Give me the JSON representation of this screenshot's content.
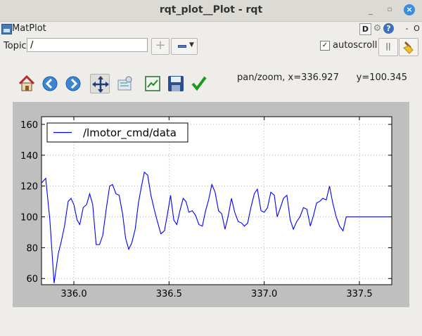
{
  "window": {
    "title": "rqt_plot__Plot - rqt"
  },
  "plugin": {
    "title": "MatPlot",
    "d_label": "D",
    "dash_label": "-",
    "o_label": "O"
  },
  "topic": {
    "label": "Topic",
    "value": "/",
    "add_label": "+"
  },
  "autoscroll": {
    "label": "autoscroll",
    "checked": true,
    "check_mark": "✓"
  },
  "pause_label": "||",
  "toolbar": {
    "icons": [
      "home-icon",
      "back-icon",
      "forward-icon",
      "pan-icon",
      "zoom-icon",
      "subplots-icon",
      "save-icon",
      "edit-icon"
    ],
    "coords": "pan/zoom, x=336.927      y=100.345"
  },
  "chart_data": {
    "type": "line",
    "xlim": [
      335.83,
      337.67
    ],
    "ylim": [
      56,
      165
    ],
    "x_ticks": [
      336.0,
      336.5,
      337.0,
      337.5
    ],
    "y_ticks": [
      60,
      80,
      100,
      120,
      140,
      160
    ],
    "x_tick_labels": [
      "336.0",
      "336.5",
      "337.0",
      "337.5"
    ],
    "y_tick_labels": [
      "60",
      "80",
      "100",
      "120",
      "140",
      "160"
    ],
    "grid": true,
    "legend_position": "upper-left",
    "series": [
      {
        "name": "/lmotor_cmd/data",
        "color": "#0000ff",
        "x": [
          335.83,
          335.852,
          335.874,
          335.896,
          335.918,
          335.934,
          335.951,
          335.97,
          335.985,
          336.0,
          336.017,
          336.031,
          336.049,
          336.067,
          336.083,
          336.099,
          336.117,
          336.135,
          336.152,
          336.171,
          336.188,
          336.203,
          336.221,
          336.238,
          336.256,
          336.272,
          336.288,
          336.304,
          336.322,
          336.339,
          336.354,
          336.37,
          336.388,
          336.405,
          336.422,
          336.439,
          336.457,
          336.476,
          336.492,
          336.508,
          336.525,
          336.541,
          336.557,
          336.574,
          336.589,
          336.604,
          336.622,
          336.639,
          336.657,
          336.675,
          336.692,
          336.708,
          336.725,
          336.742,
          336.76,
          336.777,
          336.794,
          336.81,
          336.828,
          336.845,
          336.863,
          336.881,
          336.896,
          336.913,
          336.93,
          336.948,
          336.964,
          336.983,
          337.0,
          337.017,
          337.035,
          337.053,
          337.068,
          337.085,
          337.101,
          337.119,
          337.137,
          337.153,
          337.171,
          337.188,
          337.206,
          337.224,
          337.242,
          337.259,
          337.275,
          337.291,
          337.308,
          337.326,
          337.343,
          337.36,
          337.378,
          337.396,
          337.414,
          337.431,
          337.449,
          337.467,
          337.484,
          337.499,
          337.517,
          337.534,
          337.552,
          337.57,
          337.588,
          337.606,
          337.622,
          337.641,
          337.659,
          337.67
        ],
        "y": [
          122,
          125,
          98,
          57,
          76,
          84,
          94,
          110,
          112,
          108,
          98,
          95,
          106,
          108,
          115,
          108,
          82,
          82,
          88,
          106,
          120,
          121,
          115,
          114,
          102,
          86,
          79,
          83,
          92,
          109,
          119,
          129,
          127,
          114,
          105,
          97,
          89,
          91,
          102,
          114,
          98,
          95,
          104,
          112,
          110,
          103,
          104,
          101,
          95,
          94,
          104,
          111,
          121,
          116,
          104,
          102,
          92,
          100,
          112,
          103,
          97,
          96,
          94,
          96,
          106,
          115,
          118,
          104,
          103,
          106,
          116,
          114,
          100,
          106,
          112,
          114,
          98,
          92,
          97,
          100,
          106,
          105,
          94,
          101,
          109,
          110,
          112,
          111,
          120,
          109,
          100,
          94,
          91,
          100,
          100,
          100,
          100,
          100,
          100,
          100,
          100,
          100,
          100,
          100,
          100,
          100,
          100,
          100
        ]
      }
    ]
  }
}
